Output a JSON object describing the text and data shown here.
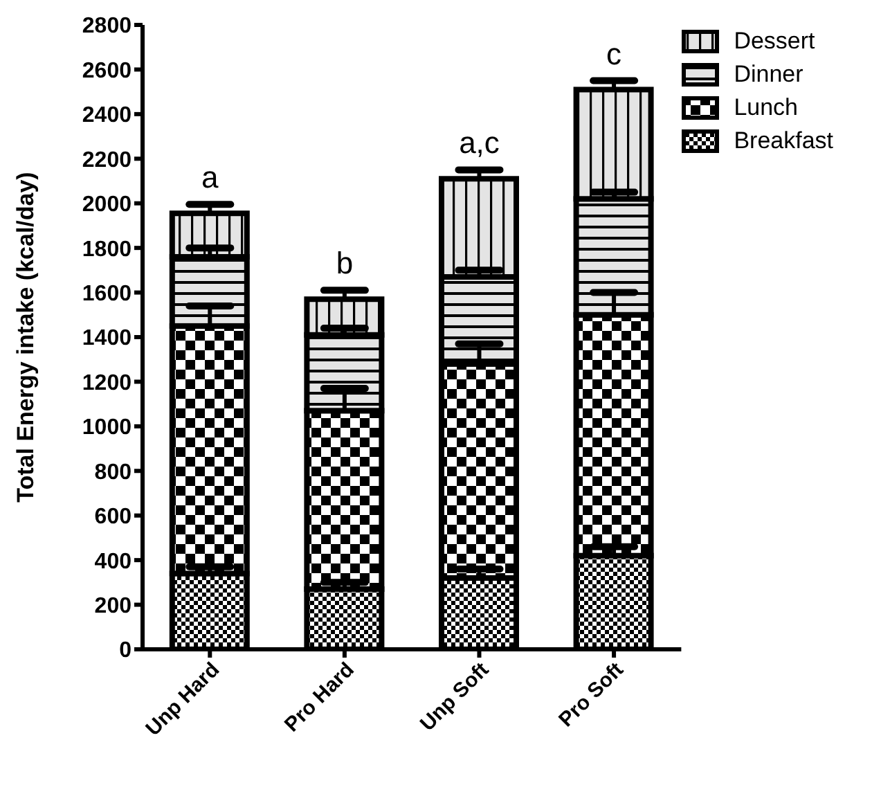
{
  "chart_data": {
    "type": "bar",
    "stacked": true,
    "ylabel": "Total Energy intake (kcal/day)",
    "categories": [
      "Unp Hard",
      "Pro Hard",
      "Unp Soft",
      "Pro Soft"
    ],
    "series": [
      {
        "name": "Breakfast",
        "color": "#000000",
        "values": [
          340,
          270,
          320,
          420
        ],
        "errors": [
          30,
          30,
          40,
          40
        ]
      },
      {
        "name": "Lunch",
        "color": "#000000",
        "values": [
          1110,
          800,
          960,
          1080
        ],
        "errors": [
          90,
          100,
          90,
          100
        ]
      },
      {
        "name": "Dinner",
        "color": "#000000",
        "values": [
          310,
          340,
          390,
          520
        ],
        "errors": [
          40,
          30,
          30,
          30
        ]
      },
      {
        "name": "Dessert",
        "color": "#000000",
        "values": [
          195,
          160,
          440,
          490
        ],
        "errors": [
          40,
          40,
          40,
          40
        ]
      }
    ],
    "ylim": [
      0,
      2800
    ],
    "yticks": [
      0,
      200,
      400,
      600,
      800,
      1000,
      1200,
      1400,
      1600,
      1800,
      2000,
      2200,
      2400,
      2600,
      2800
    ],
    "legend": "top right",
    "grid": false,
    "annotations": [
      "a",
      "b",
      "a,c",
      "c"
    ]
  }
}
